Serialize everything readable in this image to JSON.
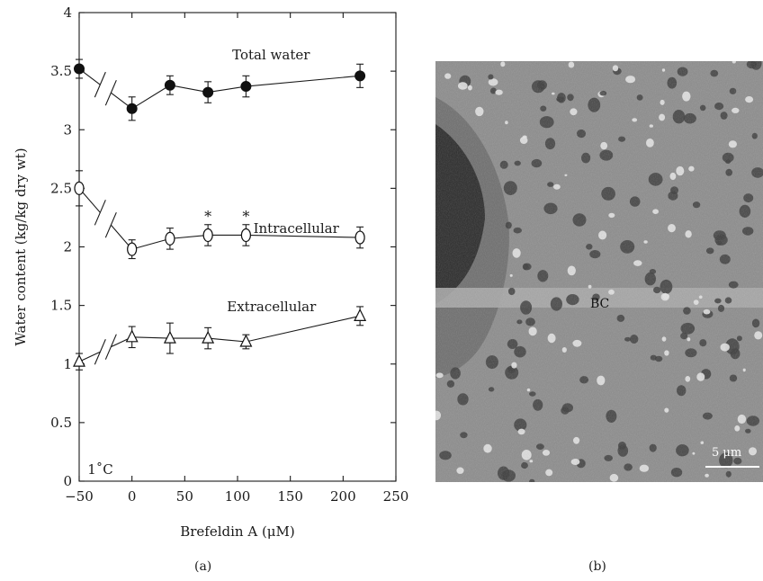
{
  "chart_data": {
    "type": "line",
    "xlabel": "Brefeldin A (μM)",
    "ylabel": "Water content (kg/kg dry wt)",
    "xlim": [
      -50,
      250
    ],
    "ylim": [
      0,
      4
    ],
    "x_ticks": [
      "−50",
      "0",
      "50",
      "100",
      "150",
      "200",
      "250"
    ],
    "y_ticks": [
      "0",
      "0.5",
      "1",
      "1.5",
      "2",
      "2.5",
      "3",
      "3.5",
      "4"
    ],
    "grid": false,
    "axis_note": "1˚C",
    "x": [
      -50,
      0,
      36,
      72,
      108,
      216
    ],
    "series": [
      {
        "name": "Total water",
        "marker": "filled-circle",
        "values": [
          3.52,
          3.18,
          3.38,
          3.32,
          3.37,
          3.46
        ],
        "error": [
          0.08,
          0.1,
          0.08,
          0.09,
          0.09,
          0.1
        ]
      },
      {
        "name": "Intracellular",
        "marker": "open-circle",
        "values": [
          2.5,
          1.98,
          2.07,
          2.1,
          2.1,
          2.08
        ],
        "error": [
          0.15,
          0.08,
          0.09,
          0.09,
          0.09,
          0.09
        ],
        "significant": [
          false,
          false,
          false,
          true,
          true,
          false
        ]
      },
      {
        "name": "Extracellular",
        "marker": "open-triangle",
        "values": [
          1.02,
          1.23,
          1.22,
          1.22,
          1.19,
          1.41
        ],
        "error": [
          0.07,
          0.09,
          0.13,
          0.09,
          0.06,
          0.08
        ]
      }
    ],
    "significance_mark": "*"
  },
  "panels": {
    "a_label": "(a)",
    "b_label": "(b)"
  },
  "micrograph": {
    "region_label": "BC",
    "scale_bar_label": "5 μm"
  }
}
